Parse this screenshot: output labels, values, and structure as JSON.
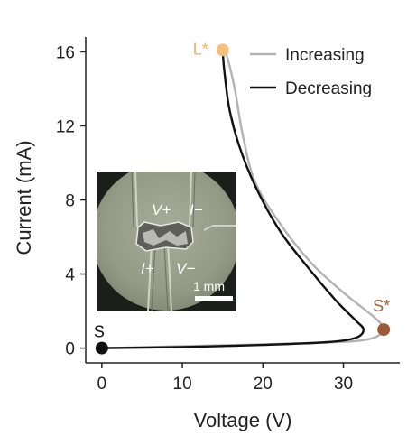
{
  "chart_data": {
    "type": "line",
    "xlabel": "Voltage (V)",
    "ylabel": "Current (mA)",
    "xlim": [
      -2,
      37
    ],
    "ylim": [
      -0.8,
      16.8
    ],
    "xticks": [
      0,
      10,
      20,
      30
    ],
    "yticks": [
      0,
      4,
      8,
      12,
      16
    ],
    "grid": false,
    "legend_position": "top-right",
    "series": [
      {
        "name": "Increasing",
        "color": "#b3b3b3",
        "points": [
          [
            0,
            0
          ],
          [
            10,
            0.1
          ],
          [
            20,
            0.2
          ],
          [
            28,
            0.3
          ],
          [
            32,
            0.4
          ],
          [
            34,
            0.6
          ],
          [
            35,
            1.0
          ],
          [
            34,
            1.6
          ],
          [
            30,
            3.0
          ],
          [
            26,
            4.6
          ],
          [
            22,
            6.8
          ],
          [
            19,
            9.0
          ],
          [
            17.5,
            11.5
          ],
          [
            16.5,
            14.0
          ],
          [
            15.5,
            15.8
          ],
          [
            15,
            16.1
          ]
        ]
      },
      {
        "name": "Decreasing",
        "color": "#111111",
        "points": [
          [
            15,
            16.1
          ],
          [
            15.2,
            15.0
          ],
          [
            15.8,
            13.0
          ],
          [
            17,
            11.0
          ],
          [
            19,
            8.8
          ],
          [
            22,
            6.4
          ],
          [
            25.5,
            4.4
          ],
          [
            29,
            2.6
          ],
          [
            31.5,
            1.5
          ],
          [
            32.5,
            1.0
          ],
          [
            31.5,
            0.55
          ],
          [
            28,
            0.32
          ],
          [
            20,
            0.17
          ],
          [
            10,
            0.06
          ],
          [
            0,
            0
          ]
        ]
      }
    ],
    "markers": [
      {
        "label": "L*",
        "x": 15,
        "y": 16.1,
        "color": "#f4c07e",
        "text_color": "#f0b56a"
      },
      {
        "label": "S*",
        "x": 35,
        "y": 1.0,
        "color": "#9c5a36",
        "text_color": "#a0653f"
      },
      {
        "label": "S",
        "x": 0,
        "y": 0,
        "color": "#111111",
        "text_color": "#111111"
      }
    ],
    "inset": {
      "labels": [
        "V+",
        "I−",
        "I+",
        "V−"
      ],
      "scale_bar_label": "1 mm"
    }
  }
}
